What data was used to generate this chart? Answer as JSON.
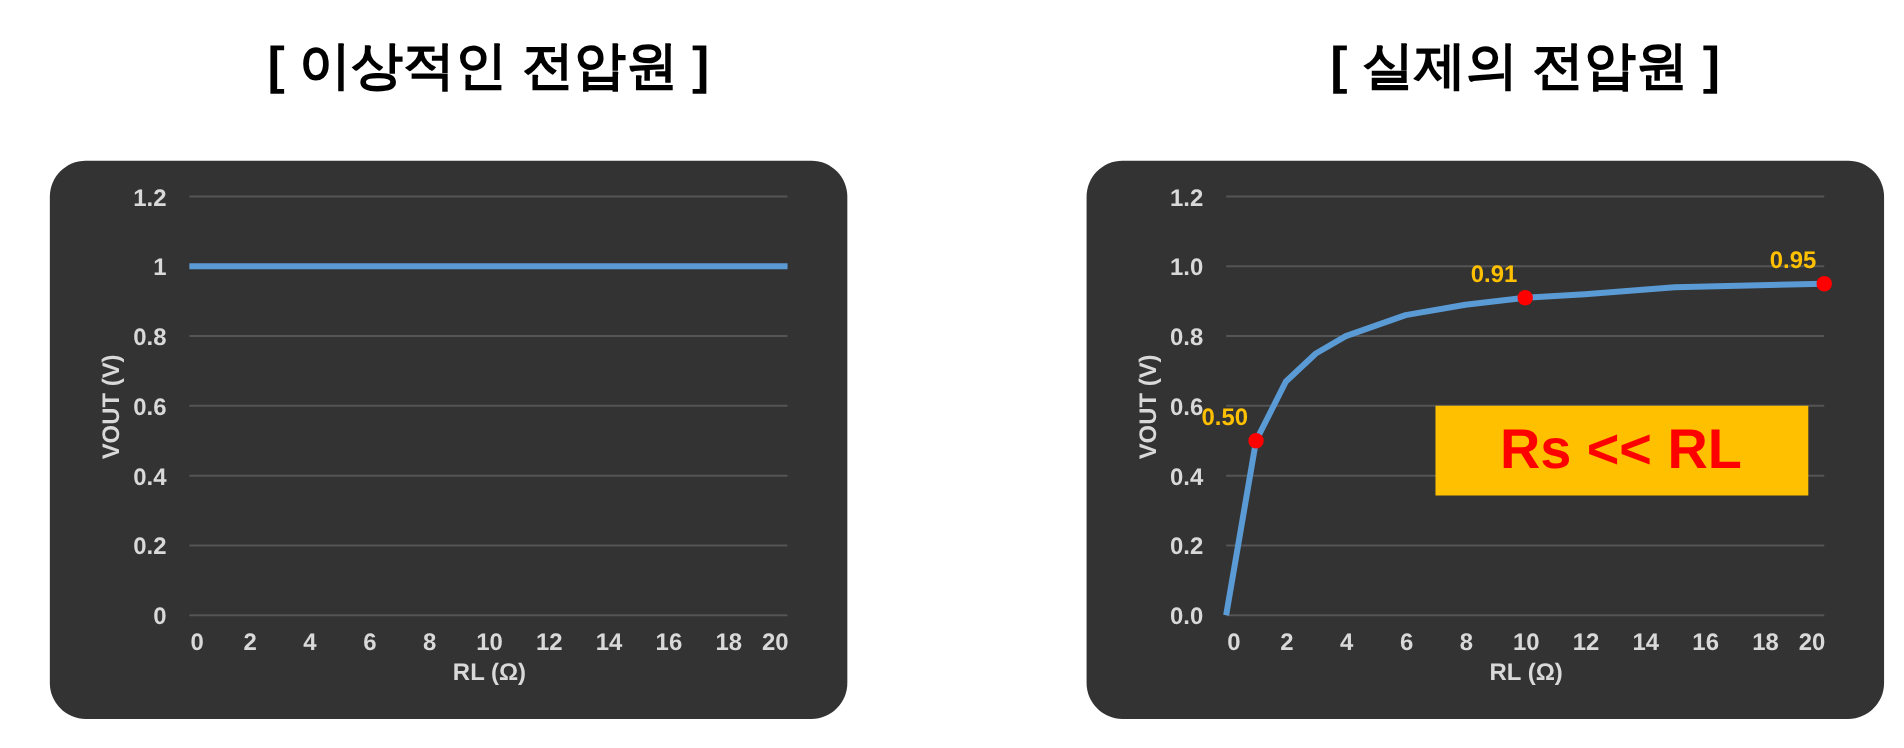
{
  "chart_data": [
    {
      "type": "line",
      "title": "[ 이상적인 전압원 ]",
      "xlabel": "RL (Ω)",
      "ylabel": "VOUT (V)",
      "series": [
        {
          "color": "#5b9bd5",
          "x": [
            0,
            20
          ],
          "values": [
            1,
            1
          ]
        }
      ],
      "xlim": [
        0,
        20
      ],
      "xticks": [
        0,
        2,
        4,
        6,
        8,
        10,
        12,
        14,
        16,
        18,
        20
      ],
      "ylim": [
        0,
        1.2
      ],
      "yticks": [
        0,
        0.2,
        0.4,
        0.6,
        0.8,
        1,
        1.2
      ],
      "grid": "y",
      "marker": "none",
      "line_style": "solid"
    },
    {
      "type": "line",
      "title": "[ 실제의 전압원 ]",
      "xlabel": "RL (Ω)",
      "ylabel": "VOUT (V)",
      "series": [
        {
          "color": "#5b9bd5",
          "x": [
            0,
            1,
            2,
            3,
            4,
            5,
            6,
            8,
            10,
            12,
            15,
            20
          ],
          "values": [
            0,
            0.5,
            0.67,
            0.75,
            0.8,
            0.83,
            0.86,
            0.89,
            0.91,
            0.92,
            0.94,
            0.95
          ]
        },
        {
          "type": "scatter",
          "marker": "circle",
          "color": "#ff0000",
          "x": [
            1,
            10,
            20
          ],
          "values": [
            0.5,
            0.91,
            0.95
          ],
          "value_labels": [
            "0.50",
            "0.91",
            "0.95"
          ]
        }
      ],
      "annotations": [
        "Rs << RL"
      ],
      "xlim": [
        0,
        20
      ],
      "xticks": [
        0,
        2,
        4,
        6,
        8,
        10,
        12,
        14,
        16,
        18,
        20
      ],
      "ylim": [
        0,
        1.2
      ],
      "yticks": [
        {
          "value": 0,
          "label": "0.0"
        },
        {
          "value": 0.2,
          "label": "0.2"
        },
        {
          "value": 0.4,
          "label": "0.4"
        },
        {
          "value": 0.6,
          "label": "0.6"
        },
        {
          "value": 0.8,
          "label": "0.8"
        },
        {
          "value": 1,
          "label": "1.0"
        },
        {
          "value": 1.2,
          "label": "1.2"
        }
      ],
      "grid": "y",
      "marker": "none",
      "line_style": "solid"
    }
  ]
}
